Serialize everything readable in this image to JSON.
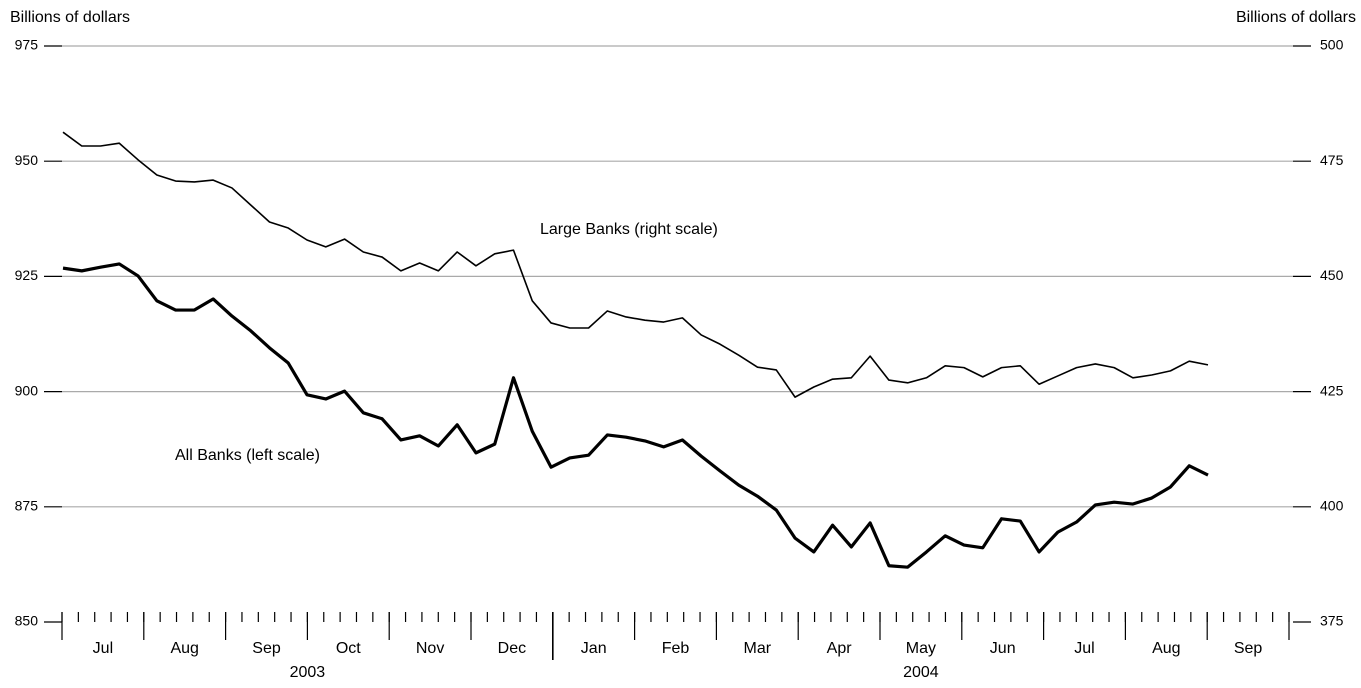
{
  "chart_data": {
    "type": "line",
    "y_label": "Billions of dollars",
    "y2_label": "Billions of dollars",
    "months": [
      "Jul",
      "Aug",
      "Sep",
      "Oct",
      "Nov",
      "Dec",
      "Jan",
      "Feb",
      "Mar",
      "Apr",
      "May",
      "Jun",
      "Jul",
      "Aug",
      "Sep"
    ],
    "years": [
      "2003",
      "2004"
    ],
    "ylim": [
      850,
      975
    ],
    "yticks": [
      850,
      875,
      900,
      925,
      950,
      975
    ],
    "y2lim": [
      375,
      500
    ],
    "y2ticks": [
      375,
      400,
      425,
      450,
      475,
      500
    ],
    "grid": true,
    "series": [
      {
        "name": "All Banks (left scale)",
        "color": "#000000",
        "axis": "y",
        "values": [
          926.8,
          926.2,
          927.0,
          927.7,
          925.1,
          919.7,
          917.7,
          917.7,
          920.1,
          916.4,
          913.2,
          909.5,
          906.2,
          899.3,
          898.4,
          900.1,
          895.4,
          894.1,
          889.5,
          890.4,
          888.2,
          892.8,
          886.7,
          888.6,
          903.0,
          891.4,
          883.6,
          885.6,
          886.2,
          890.6,
          890.1,
          889.3,
          888.0,
          889.5,
          886.0,
          882.8,
          879.7,
          877.3,
          874.3,
          868.2,
          865.2,
          871.0,
          866.3,
          871.5,
          862.2,
          861.9,
          865.2,
          868.7,
          866.7,
          866.1,
          872.4,
          871.9,
          865.2,
          869.5,
          871.7,
          875.4,
          876.0,
          875.6,
          876.9,
          879.3,
          883.9,
          881.9
        ]
      },
      {
        "name": "Large Banks (right scale)",
        "color": "#000000",
        "axis": "y2",
        "values": [
          481.3,
          478.3,
          478.3,
          478.9,
          475.3,
          472.0,
          470.7,
          470.5,
          470.9,
          469.2,
          465.5,
          461.8,
          460.5,
          457.9,
          456.4,
          458.1,
          455.3,
          454.2,
          451.2,
          452.9,
          451.2,
          455.3,
          452.3,
          454.9,
          455.7,
          444.7,
          439.9,
          438.8,
          438.8,
          442.5,
          441.2,
          440.5,
          440.1,
          441.0,
          437.3,
          435.3,
          432.9,
          430.3,
          429.7,
          423.8,
          426.0,
          427.7,
          428.0,
          432.7,
          427.5,
          426.9,
          428.0,
          430.6,
          430.2,
          428.2,
          430.2,
          430.6,
          426.6,
          428.4,
          430.2,
          431.0,
          430.2,
          428.0,
          428.6,
          429.5,
          431.6,
          430.8
        ]
      }
    ]
  }
}
